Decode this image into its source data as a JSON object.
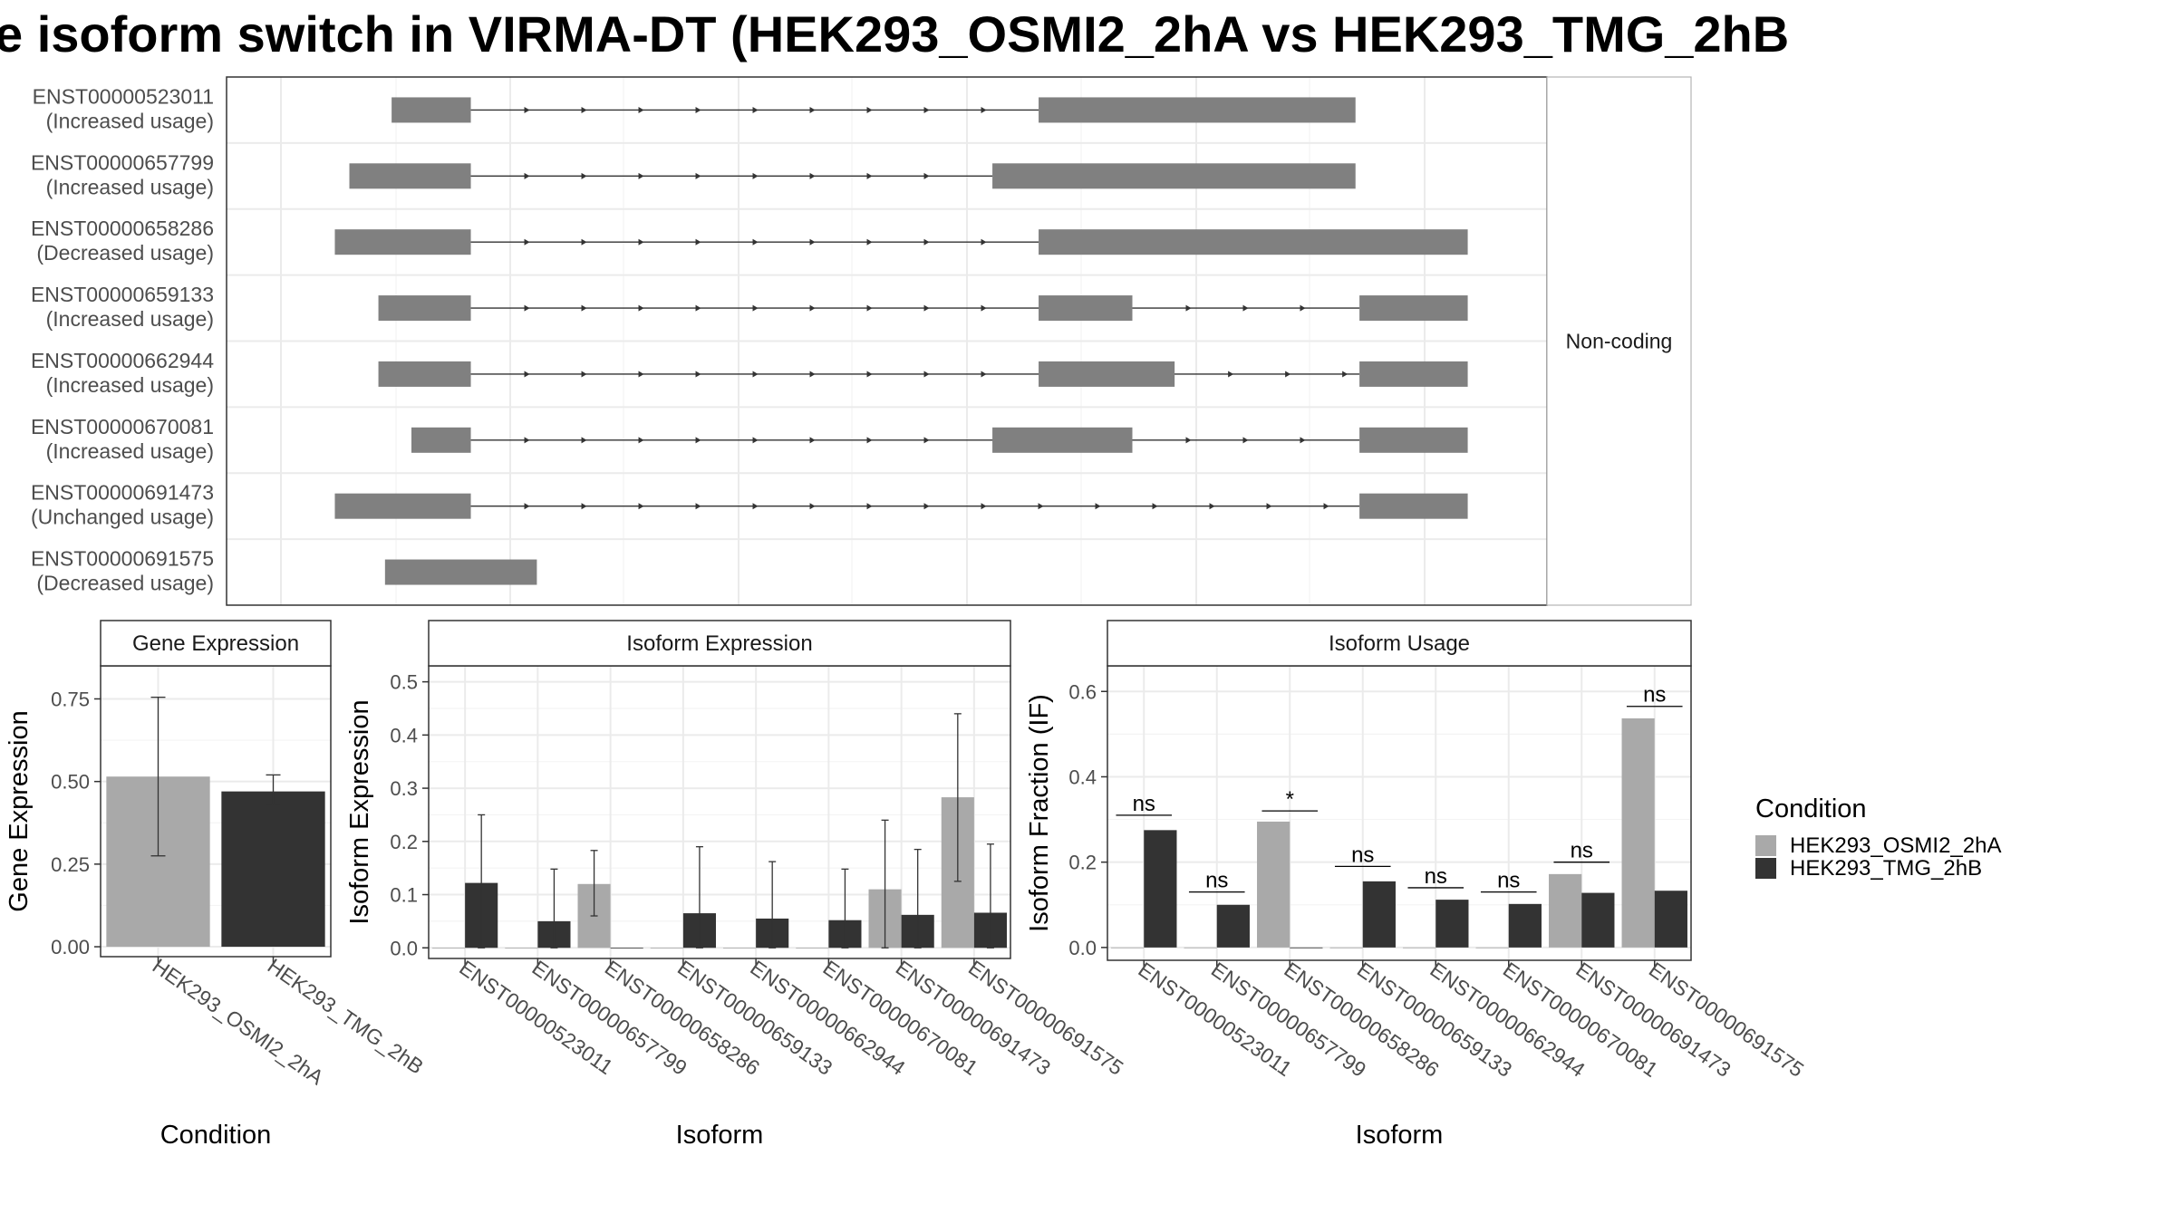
{
  "title": "e isoform switch in VIRMA-DT (HEK293_OSMI2_2hA vs HEK293_TMG_2hB",
  "colors": {
    "cond_a": "#a9a9a9",
    "cond_b": "#333333",
    "exon": "#808080",
    "grid": "#ebebeb",
    "strip": "#ffffff"
  },
  "chart_data": [
    {
      "type": "gene-structure",
      "strip_label": "Non-coding",
      "isoforms": [
        {
          "id": "ENST00000523011",
          "usage": "(Increased usage)",
          "exons": [
            [
              0.125,
              0.185
            ],
            [
              0.615,
              0.855
            ]
          ]
        },
        {
          "id": "ENST00000657799",
          "usage": "(Increased usage)",
          "exons": [
            [
              0.093,
              0.185
            ],
            [
              0.58,
              0.855
            ]
          ]
        },
        {
          "id": "ENST00000658286",
          "usage": "(Decreased usage)",
          "exons": [
            [
              0.082,
              0.185
            ],
            [
              0.615,
              0.94
            ]
          ]
        },
        {
          "id": "ENST00000659133",
          "usage": "(Increased usage)",
          "exons": [
            [
              0.115,
              0.185
            ],
            [
              0.615,
              0.686
            ],
            [
              0.858,
              0.94
            ]
          ]
        },
        {
          "id": "ENST00000662944",
          "usage": "(Increased usage)",
          "exons": [
            [
              0.115,
              0.185
            ],
            [
              0.615,
              0.718
            ],
            [
              0.858,
              0.94
            ]
          ]
        },
        {
          "id": "ENST00000670081",
          "usage": "(Increased usage)",
          "exons": [
            [
              0.14,
              0.185
            ],
            [
              0.58,
              0.686
            ],
            [
              0.858,
              0.94
            ]
          ]
        },
        {
          "id": "ENST00000691473",
          "usage": "(Unchanged usage)",
          "exons": [
            [
              0.082,
              0.185
            ],
            [
              0.858,
              0.94
            ]
          ]
        },
        {
          "id": "ENST00000691575",
          "usage": "(Decreased usage)",
          "exons": [
            [
              0.12,
              0.235
            ]
          ]
        }
      ]
    },
    {
      "type": "bar",
      "strip_title": "Gene Expression",
      "xlabel": "Condition",
      "ylabel": "Gene Expression",
      "ylim": [
        -0.03,
        0.85
      ],
      "yticks": [
        "0.00",
        "0.25",
        "0.50",
        "0.75"
      ],
      "ytick_values": [
        0,
        0.25,
        0.5,
        0.75
      ],
      "categories": [
        "HEK293_OSMI2_2hA",
        "HEK293_TMG_2hB"
      ],
      "values": [
        0.515,
        0.47
      ],
      "errors": [
        [
          0.275,
          0.755
        ],
        [
          0.43,
          0.52
        ]
      ]
    },
    {
      "type": "bar",
      "strip_title": "Isoform Expression",
      "xlabel": "Isoform",
      "ylabel": "Isoform Expression",
      "ylim": [
        -0.02,
        0.53
      ],
      "yticks": [
        "0.0",
        "0.1",
        "0.2",
        "0.3",
        "0.4",
        "0.5"
      ],
      "ytick_values": [
        0,
        0.1,
        0.2,
        0.3,
        0.4,
        0.5
      ],
      "categories": [
        "ENST00000523011",
        "ENST00000657799",
        "ENST00000658286",
        "ENST00000659133",
        "ENST00000662944",
        "ENST00000670081",
        "ENST00000691473",
        "ENST00000691575"
      ],
      "series": [
        {
          "name": "HEK293_OSMI2_2hA",
          "values": [
            0,
            0,
            0.12,
            0,
            0,
            0,
            0.11,
            0.283
          ],
          "errors": [
            null,
            null,
            [
              0.06,
              0.183
            ],
            null,
            null,
            null,
            [
              0,
              0.24
            ],
            [
              0.125,
              0.44
            ]
          ]
        },
        {
          "name": "HEK293_TMG_2hB",
          "values": [
            0.122,
            0.05,
            0,
            0.065,
            0.055,
            0.052,
            0.062,
            0.066
          ],
          "errors": [
            [
              0,
              0.25
            ],
            [
              0,
              0.148
            ],
            null,
            [
              0,
              0.19
            ],
            [
              0,
              0.162
            ],
            [
              0,
              0.148
            ],
            [
              0,
              0.185
            ],
            [
              0,
              0.195
            ]
          ]
        }
      ]
    },
    {
      "type": "bar",
      "strip_title": "Isoform Usage",
      "xlabel": "Isoform",
      "ylabel": "Isoform Fraction (IF)",
      "ylim": [
        -0.03,
        0.66
      ],
      "yticks": [
        "0.0",
        "0.2",
        "0.4",
        "0.6"
      ],
      "ytick_values": [
        0,
        0.2,
        0.4,
        0.6
      ],
      "categories": [
        "ENST00000523011",
        "ENST00000657799",
        "ENST00000658286",
        "ENST00000659133",
        "ENST00000662944",
        "ENST00000670081",
        "ENST00000691473",
        "ENST00000691575"
      ],
      "series": [
        {
          "name": "HEK293_OSMI2_2hA",
          "values": [
            0,
            0,
            0.295,
            0,
            0,
            0,
            0.172,
            0.537
          ]
        },
        {
          "name": "HEK293_TMG_2hB",
          "values": [
            0.275,
            0.1,
            0,
            0.155,
            0.112,
            0.102,
            0.128,
            0.133
          ]
        }
      ],
      "significance": [
        "ns",
        "ns",
        "*",
        "ns",
        "ns",
        "ns",
        "ns",
        "ns"
      ],
      "significance_values": [
        0.31,
        0.13,
        0.32,
        0.19,
        0.14,
        0.13,
        0.2,
        0.565
      ]
    }
  ],
  "legend": {
    "title": "Condition",
    "entries": [
      "HEK293_OSMI2_2hA",
      "HEK293_TMG_2hB"
    ]
  }
}
